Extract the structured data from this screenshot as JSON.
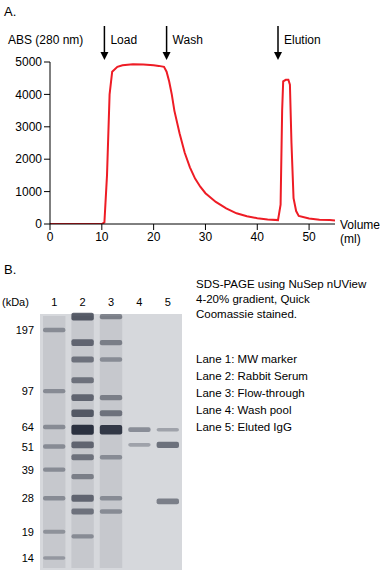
{
  "panel_labels": [
    "A.",
    "B."
  ],
  "chart_data": {
    "type": "line",
    "ylabel": "ABS (280 nm)",
    "xlabel": "Volume (ml)",
    "x": [
      0,
      10,
      10.5,
      11,
      11.5,
      12,
      13,
      14,
      16,
      18,
      20,
      21,
      22,
      22.5,
      23,
      23.5,
      24,
      25,
      26,
      27,
      28,
      29,
      30,
      32,
      34,
      36,
      38,
      40,
      42,
      44,
      44.5,
      44.8,
      45,
      45.5,
      46,
      46.3,
      46.6,
      47,
      47.5,
      48,
      50,
      52,
      54,
      55
    ],
    "values": [
      0,
      0,
      50,
      1500,
      4000,
      4700,
      4850,
      4900,
      4930,
      4920,
      4900,
      4880,
      4850,
      4700,
      4400,
      4000,
      3500,
      2800,
      2200,
      1750,
      1400,
      1150,
      950,
      680,
      480,
      330,
      240,
      180,
      140,
      120,
      600,
      3500,
      4400,
      4450,
      4450,
      4300,
      2500,
      800,
      400,
      250,
      170,
      130,
      120,
      110
    ],
    "color": "#ee1c25",
    "xlim": [
      0,
      55
    ],
    "xticks": [
      0,
      10,
      20,
      30,
      40,
      50
    ],
    "ylim": [
      0,
      5000
    ],
    "yticks": [
      0,
      1000,
      2000,
      3000,
      4000,
      5000
    ],
    "grid": false,
    "annotations": [
      {
        "text": "Load",
        "x": 10.5
      },
      {
        "text": "Wash",
        "x": 22.5
      },
      {
        "text": "Elution",
        "x": 44
      }
    ]
  },
  "gel": {
    "unit_label": "(kDa)",
    "markers": [
      197,
      97,
      64,
      51,
      39,
      28,
      19,
      14
    ],
    "lane_numbers": [
      "1",
      "2",
      "3",
      "4",
      "5"
    ],
    "description": "SDS-PAGE using NuSep nUView 4-20% gradient, Quick Coomassie stained.",
    "lane_key": [
      "Lane 1: MW marker",
      "Lane 2: Rabbit Serum",
      "Lane 3: Flow-through",
      "Lane 4: Wash pool",
      "Lane 5: Eluted IgG"
    ],
    "lanes": [
      {
        "bands": [
          {
            "kDa": 197,
            "strength": 0.3
          },
          {
            "kDa": 97,
            "strength": 0.3
          },
          {
            "kDa": 64,
            "strength": 0.3
          },
          {
            "kDa": 51,
            "strength": 0.3
          },
          {
            "kDa": 39,
            "strength": 0.3
          },
          {
            "kDa": 28,
            "strength": 0.3
          },
          {
            "kDa": 19,
            "strength": 0.25
          },
          {
            "kDa": 14,
            "strength": 0.2
          }
        ]
      },
      {
        "bands": [
          {
            "kDa": 230,
            "strength": 0.7
          },
          {
            "kDa": 170,
            "strength": 0.6
          },
          {
            "kDa": 140,
            "strength": 0.5
          },
          {
            "kDa": 110,
            "strength": 0.5
          },
          {
            "kDa": 90,
            "strength": 0.6
          },
          {
            "kDa": 75,
            "strength": 0.7
          },
          {
            "kDa": 62,
            "strength": 1
          },
          {
            "kDa": 52,
            "strength": 0.6
          },
          {
            "kDa": 45,
            "strength": 0.5
          },
          {
            "kDa": 36,
            "strength": 0.4
          },
          {
            "kDa": 28,
            "strength": 0.6
          },
          {
            "kDa": 24,
            "strength": 0.5
          },
          {
            "kDa": 18,
            "strength": 0.3
          }
        ]
      },
      {
        "bands": [
          {
            "kDa": 230,
            "strength": 0.4
          },
          {
            "kDa": 170,
            "strength": 0.4
          },
          {
            "kDa": 140,
            "strength": 0.3
          },
          {
            "kDa": 90,
            "strength": 0.4
          },
          {
            "kDa": 75,
            "strength": 0.5
          },
          {
            "kDa": 62,
            "strength": 0.95
          },
          {
            "kDa": 45,
            "strength": 0.3
          },
          {
            "kDa": 28,
            "strength": 0.3
          },
          {
            "kDa": 24,
            "strength": 0.3
          }
        ]
      },
      {
        "bands": [
          {
            "kDa": 62,
            "strength": 0.35
          },
          {
            "kDa": 52,
            "strength": 0.2
          }
        ]
      },
      {
        "bands": [
          {
            "kDa": 62,
            "strength": 0.2
          },
          {
            "kDa": 52,
            "strength": 0.55
          },
          {
            "kDa": 27,
            "strength": 0.45
          }
        ]
      }
    ]
  }
}
